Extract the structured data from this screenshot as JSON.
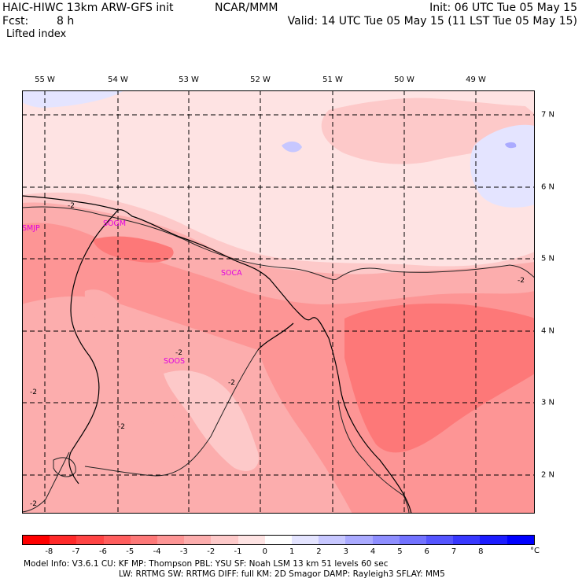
{
  "header": {
    "title_left": "HAIC-HIWC 13km ARW-GFS init",
    "org": "NCAR/MMM",
    "init": "Init: 06 UTC Tue 05 May 15",
    "fcst_label": "Fcst:",
    "fcst_value": "8 h",
    "valid": "Valid: 14 UTC Tue 05 May 15 (11 LST Tue 05 May 15)",
    "field": "Lifted index"
  },
  "map": {
    "lon_labels": [
      "55 W",
      "54 W",
      "53 W",
      "52 W",
      "51 W",
      "50 W",
      "49 W"
    ],
    "lat_labels": [
      "7 N",
      "6 N",
      "5 N",
      "4 N",
      "3 N",
      "2 N"
    ],
    "stations": [
      "SMJP",
      "SOGM",
      "SOCA",
      "SOOS"
    ],
    "contour_label": "-2"
  },
  "colorbar": {
    "colors": [
      "#ff0000",
      "#ff2a2a",
      "#ff4444",
      "#ff5e5e",
      "#fd7878",
      "#fd9595",
      "#fcadad",
      "#fdc9c9",
      "#fee3e3",
      "#ffffff",
      "#e4e4ff",
      "#c7c7ff",
      "#aaaaff",
      "#8e8eff",
      "#7272ff",
      "#5555ff",
      "#3838ff",
      "#1c1cff",
      "#0000ff"
    ],
    "labels": [
      "-8",
      "-7",
      "-6",
      "-5",
      "-4",
      "-3",
      "-2",
      "-1",
      "0",
      "1",
      "2",
      "3",
      "4",
      "5",
      "6",
      "7",
      "8"
    ],
    "unit": "°C"
  },
  "footer": {
    "line1": "Model Info: V3.6.1    CU: KF     MP: Thompson    PBL: YSU     SF: Noah LSM    13 km    51 levels   60 sec",
    "line2": "LW: RRTMG   SW: RRTMG   DIFF: full    KM: 2D Smagor DAMP: Rayleigh3   SFLAY: MM5"
  }
}
